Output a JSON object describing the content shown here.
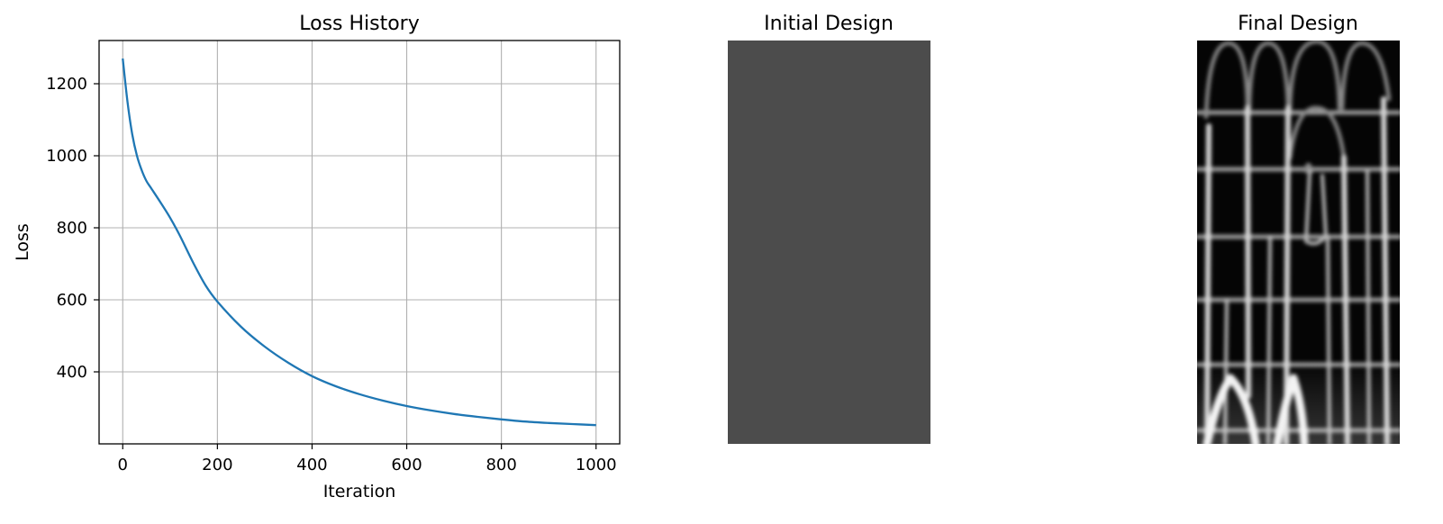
{
  "chart_data": [
    {
      "type": "line",
      "title": "Loss History",
      "xlabel": "Iteration",
      "ylabel": "Loss",
      "xlim": [
        -50,
        1050
      ],
      "ylim": [
        200,
        1320
      ],
      "xticks": [
        0,
        200,
        400,
        600,
        800,
        1000
      ],
      "yticks": [
        400,
        600,
        800,
        1000,
        1200
      ],
      "grid": true,
      "color": "#1f77b4",
      "series": [
        {
          "x": [
            0,
            10,
            20,
            30,
            40,
            50,
            60,
            80,
            100,
            120,
            150,
            175,
            200,
            250,
            300,
            350,
            400,
            450,
            500,
            550,
            600,
            650,
            700,
            750,
            800,
            850,
            900,
            950,
            1000
          ],
          "y": [
            1270,
            1150,
            1060,
            1000,
            960,
            930,
            910,
            870,
            828,
            780,
            700,
            640,
            595,
            525,
            470,
            425,
            388,
            360,
            338,
            320,
            305,
            293,
            283,
            275,
            268,
            262,
            258,
            255,
            252
          ]
        }
      ]
    },
    {
      "type": "heatmap",
      "title": "Initial Design",
      "colormap": "gray",
      "uniform_value": 0.3,
      "axis": "off"
    },
    {
      "type": "heatmap",
      "title": "Final Design",
      "colormap": "gray",
      "axis": "off",
      "description_values": "binary-like lattice: dark voids separated by bright vertical struts and horizontal ribs"
    }
  ]
}
